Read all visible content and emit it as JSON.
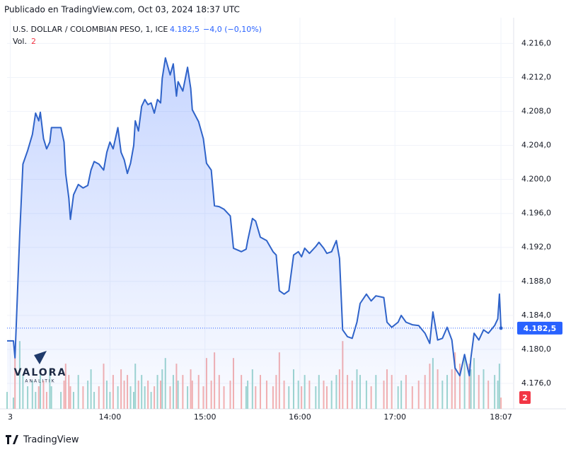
{
  "header": {
    "published": "Publicado en TradingView.com, Oct 03, 2024 18:37 UTC"
  },
  "chart_data": {
    "type": "area",
    "title": "U.S. DOLLAR / COLOMBIAN PESO, 1, ICE",
    "change": "−4,0 (−0,10%)",
    "volume_label": "Vol.",
    "last_price": {
      "value": 4182.5,
      "label": "4.182,5"
    },
    "color": "#2f63c9",
    "up_color": "#9fd6cf",
    "down_color": "#f6b1af",
    "grid": true,
    "xlim": [
      "12:55",
      "18:15"
    ],
    "xticks": [
      {
        "value": "12:57",
        "label": "3"
      },
      "14:00",
      "15:00",
      "16:00",
      "17:00",
      "18:07"
    ],
    "ylim": [
      4173.0,
      4218.2
    ],
    "yticks": [
      {
        "value": 4176,
        "label": "4.176,0"
      },
      {
        "value": 4180,
        "label": "4.180,0"
      },
      {
        "value": 4184,
        "label": "4.184,0"
      },
      {
        "value": 4188,
        "label": "4.188,0"
      },
      {
        "value": 4192,
        "label": "4.192,0"
      },
      {
        "value": 4196,
        "label": "4.196,0"
      },
      {
        "value": 4200,
        "label": "4.200,0"
      },
      {
        "value": 4204,
        "label": "4.204,0"
      },
      {
        "value": 4208,
        "label": "4.208,0"
      },
      {
        "value": 4212,
        "label": "4.212,0"
      },
      {
        "value": 4216,
        "label": "4.216,0"
      }
    ],
    "y2lim": [
      0,
      68
    ],
    "x": [
      "12:55",
      "12:59",
      "13:00",
      "13:03",
      "13:05",
      "13:08",
      "13:11",
      "13:13",
      "13:15",
      "13:16",
      "13:18",
      "13:20",
      "13:22",
      "13:23",
      "13:29",
      "13:31",
      "13:32",
      "13:34",
      "13:35",
      "13:37",
      "13:40",
      "13:43",
      "13:46",
      "13:48",
      "13:50",
      "13:53",
      "13:56",
      "13:58",
      "14:00",
      "14:02",
      "14:05",
      "14:07",
      "14:09",
      "14:11",
      "14:13",
      "14:15",
      "14:16",
      "14:18",
      "14:20",
      "14:22",
      "14:24",
      "14:26",
      "14:28",
      "14:30",
      "14:32",
      "14:33",
      "14:35",
      "14:38",
      "14:40",
      "14:42",
      "14:43",
      "14:46",
      "14:49",
      "14:51",
      "14:52",
      "14:56",
      "14:59",
      "15:01",
      "15:04",
      "15:06",
      "15:09",
      "15:12",
      "15:16",
      "15:18",
      "15:23",
      "15:26",
      "15:27",
      "15:30",
      "15:32",
      "15:35",
      "15:39",
      "15:43",
      "15:45",
      "15:47",
      "15:50",
      "15:53",
      "15:56",
      "15:59",
      "16:01",
      "16:03",
      "16:06",
      "16:10",
      "16:12",
      "16:15",
      "16:17",
      "16:20",
      "16:23",
      "16:25",
      "16:27",
      "16:30",
      "16:33",
      "16:36",
      "16:38",
      "16:42",
      "16:45",
      "16:48",
      "16:53",
      "16:55",
      "16:58",
      "17:02",
      "17:04",
      "17:07",
      "17:11",
      "17:15",
      "17:19",
      "17:22",
      "17:24",
      "17:27",
      "17:30",
      "17:33",
      "17:36",
      "17:38",
      "17:41",
      "17:44",
      "17:47",
      "17:48",
      "17:50",
      "17:53",
      "17:56",
      "17:59",
      "18:03",
      "18:05",
      "18:06",
      "18:07"
    ],
    "values": [
      4181.0,
      4181.0,
      4179.0,
      4193.6,
      4201.8,
      4203.4,
      4205.3,
      4207.8,
      4206.9,
      4207.9,
      4204.8,
      4203.6,
      4204.4,
      4206.1,
      4206.1,
      4204.4,
      4200.7,
      4197.8,
      4195.3,
      4198.2,
      4199.4,
      4199.0,
      4199.3,
      4201.1,
      4202.1,
      4201.8,
      4201.1,
      4203.2,
      4204.4,
      4203.6,
      4206.1,
      4203.2,
      4202.3,
      4200.7,
      4201.9,
      4204.0,
      4206.9,
      4205.7,
      4208.6,
      4209.4,
      4208.8,
      4209.0,
      4207.8,
      4209.4,
      4209.0,
      4211.9,
      4214.3,
      4212.3,
      4213.6,
      4209.8,
      4211.5,
      4210.4,
      4213.2,
      4210.7,
      4208.2,
      4206.8,
      4204.8,
      4201.9,
      4201.1,
      4196.9,
      4196.8,
      4196.5,
      4195.7,
      4191.9,
      4191.5,
      4191.8,
      4192.8,
      4195.4,
      4195.1,
      4193.2,
      4192.8,
      4191.5,
      4191.1,
      4186.9,
      4186.5,
      4186.9,
      4191.1,
      4191.5,
      4190.9,
      4191.9,
      4191.3,
      4192.1,
      4192.6,
      4191.9,
      4191.3,
      4191.5,
      4192.8,
      4190.7,
      4182.3,
      4181.5,
      4181.3,
      4183.2,
      4185.4,
      4186.5,
      4185.7,
      4186.3,
      4186.1,
      4183.2,
      4182.6,
      4183.2,
      4184.0,
      4183.2,
      4182.9,
      4182.8,
      4181.9,
      4180.7,
      4184.4,
      4181.1,
      4181.3,
      4182.6,
      4181.1,
      4177.8,
      4176.9,
      4179.4,
      4176.9,
      4179.0,
      4181.9,
      4181.1,
      4182.3,
      4181.9,
      4182.8,
      4183.6,
      4186.5,
      4182.5
    ],
    "volume": [
      3,
      2,
      9,
      12,
      6,
      4,
      5,
      3,
      4,
      6,
      5,
      3,
      7,
      4,
      3,
      5,
      8,
      6,
      4,
      3,
      6,
      4,
      5,
      7,
      3,
      4,
      8,
      5,
      3,
      6,
      4,
      7,
      5,
      6,
      4,
      3,
      8,
      5,
      6,
      4,
      5,
      3,
      4,
      6,
      5,
      7,
      9,
      4,
      6,
      8,
      5,
      6,
      4,
      7,
      5,
      6,
      4,
      9,
      5,
      10,
      6,
      4,
      5,
      9,
      6,
      4,
      5,
      7,
      4,
      6,
      5,
      4,
      6,
      10,
      5,
      4,
      7,
      5,
      4,
      6,
      5,
      4,
      6,
      5,
      4,
      5,
      6,
      7,
      12,
      6,
      5,
      7,
      6,
      5,
      4,
      6,
      5,
      7,
      6,
      4,
      5,
      6,
      4,
      5,
      6,
      8,
      9,
      7,
      5,
      6,
      7,
      10,
      8,
      9,
      8,
      7,
      9,
      6,
      7,
      5,
      6,
      5,
      8,
      2
    ]
  },
  "watermark": {
    "name": "VALORA",
    "sub": "ANALITIK"
  },
  "footer": {
    "brand": "TradingView"
  }
}
